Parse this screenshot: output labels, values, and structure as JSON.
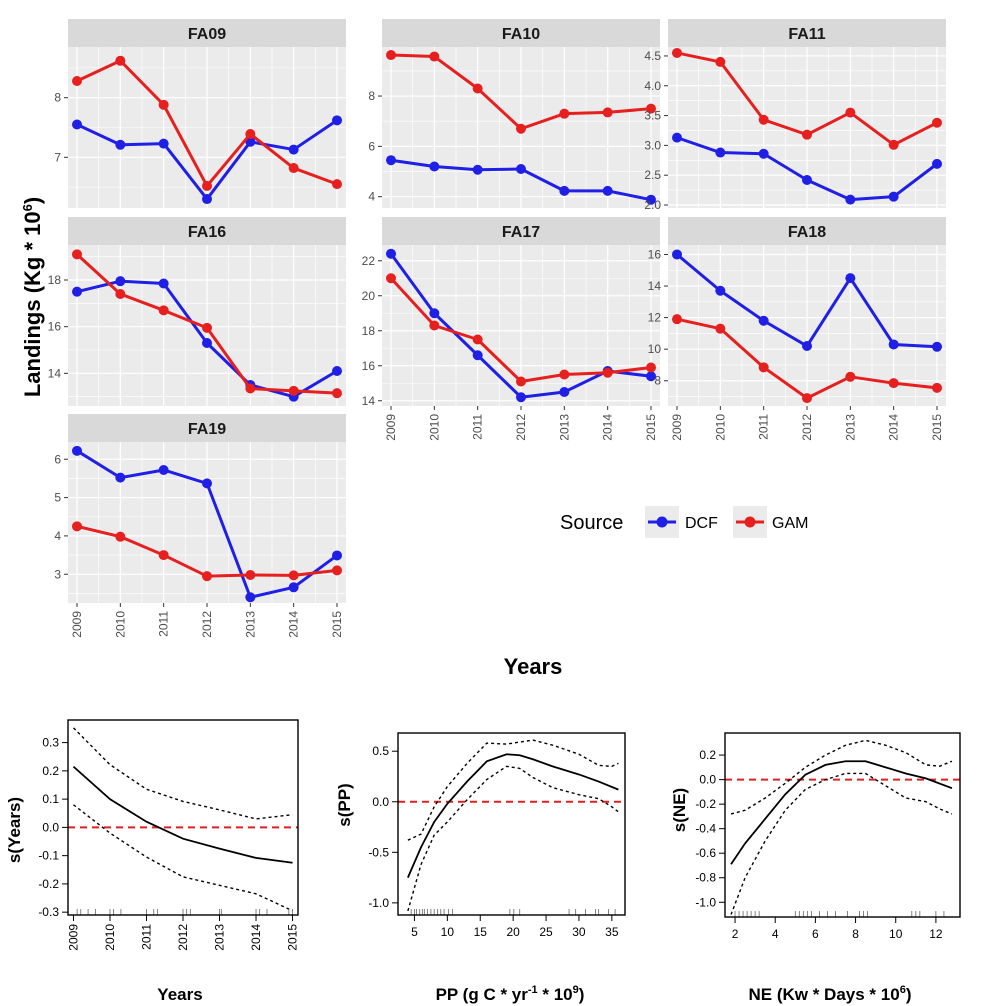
{
  "chart_data": {
    "facet_plot": {
      "type": "line",
      "y_axis_label": "Landings (Kg * 10",
      "y_axis_label_sup": "6",
      "y_axis_label_end": ")",
      "x_axis_label": "Years",
      "legend": {
        "title": "Source",
        "placement": "right",
        "entries": [
          {
            "name": "DCF",
            "color": "#1f1fe6"
          },
          {
            "name": "GAM",
            "color": "#e61f1f"
          }
        ]
      },
      "x": [
        "2009",
        "2010",
        "2011",
        "2012",
        "2013",
        "2014",
        "2015"
      ],
      "panels": [
        {
          "title": "FA09",
          "ylim": [
            6.15,
            8.85
          ],
          "yticks": [
            7,
            8
          ],
          "show_x": false,
          "series": [
            {
              "name": "DCF",
              "values": [
                7.55,
                7.21,
                7.23,
                6.3,
                7.26,
                7.13,
                7.62
              ]
            },
            {
              "name": "GAM",
              "values": [
                8.28,
                8.62,
                7.88,
                6.52,
                7.39,
                6.82,
                6.55
              ]
            }
          ]
        },
        {
          "title": "FA10",
          "ylim": [
            3.55,
            9.95
          ],
          "yticks": [
            4,
            6,
            8
          ],
          "show_x": false,
          "series": [
            {
              "name": "DCF",
              "values": [
                5.45,
                5.2,
                5.07,
                5.1,
                4.23,
                4.23,
                3.88
              ]
            },
            {
              "name": "GAM",
              "values": [
                9.63,
                9.57,
                8.3,
                6.7,
                7.3,
                7.35,
                7.5
              ]
            }
          ]
        },
        {
          "title": "FA11",
          "ylim": [
            1.95,
            4.65
          ],
          "yticks": [
            2.0,
            2.5,
            3.0,
            3.5,
            4.0,
            4.5
          ],
          "show_x": false,
          "series": [
            {
              "name": "DCF",
              "values": [
                3.13,
                2.88,
                2.86,
                2.42,
                2.09,
                2.14,
                2.69
              ]
            },
            {
              "name": "GAM",
              "values": [
                4.55,
                4.4,
                3.43,
                3.18,
                3.55,
                3.01,
                3.38
              ]
            }
          ]
        },
        {
          "title": "FA16",
          "ylim": [
            12.6,
            19.5
          ],
          "yticks": [
            14,
            16,
            18
          ],
          "show_x": false,
          "series": [
            {
              "name": "DCF",
              "values": [
                17.5,
                17.95,
                17.85,
                15.3,
                13.5,
                13.0,
                14.1
              ]
            },
            {
              "name": "GAM",
              "values": [
                19.1,
                17.4,
                16.7,
                15.95,
                13.35,
                13.25,
                13.15
              ]
            }
          ]
        },
        {
          "title": "FA17",
          "ylim": [
            13.7,
            22.9
          ],
          "yticks": [
            14,
            16,
            18,
            20,
            22
          ],
          "show_x": true,
          "series": [
            {
              "name": "DCF",
              "values": [
                22.4,
                19.0,
                16.6,
                14.2,
                14.5,
                15.7,
                15.4
              ]
            },
            {
              "name": "GAM",
              "values": [
                21.0,
                18.3,
                17.5,
                15.1,
                15.5,
                15.6,
                15.9
              ]
            }
          ]
        },
        {
          "title": "FA18",
          "ylim": [
            6.4,
            16.6
          ],
          "yticks": [
            8,
            10,
            12,
            14,
            16
          ],
          "show_x": true,
          "series": [
            {
              "name": "DCF",
              "values": [
                16.0,
                13.7,
                11.8,
                10.2,
                14.5,
                10.3,
                10.15
              ]
            },
            {
              "name": "GAM",
              "values": [
                11.9,
                11.3,
                8.85,
                6.9,
                8.25,
                7.85,
                7.55
              ]
            }
          ]
        },
        {
          "title": "FA19",
          "ylim": [
            2.25,
            6.45
          ],
          "yticks": [
            3,
            4,
            5,
            6
          ],
          "show_x": true,
          "series": [
            {
              "name": "DCF",
              "values": [
                6.22,
                5.52,
                5.72,
                5.37,
                2.4,
                2.66,
                3.49
              ]
            },
            {
              "name": "GAM",
              "values": [
                4.25,
                3.98,
                3.5,
                2.95,
                2.98,
                2.97,
                3.1
              ]
            }
          ]
        }
      ]
    },
    "smooth_plots": [
      {
        "type": "line",
        "xlabel": "Years",
        "ylabel": "s(Years)",
        "xlim": [
          2008.85,
          2015.15
        ],
        "ylim": [
          -0.31,
          0.38
        ],
        "xticks": [
          2009,
          2010,
          2011,
          2012,
          2013,
          2014,
          2015
        ],
        "xtick_rotate": true,
        "yticks": [
          0.3,
          0.2,
          0.1,
          0.0,
          -0.1,
          -0.2,
          -0.3
        ],
        "ytick_labels": [
          "0.3",
          "0.2",
          "0.1",
          "0.0",
          "-0.1",
          "-0.2",
          "-0.3"
        ],
        "zero_line": 0,
        "fit": {
          "x": [
            2009,
            2010,
            2011,
            2012,
            2013,
            2014,
            2015
          ],
          "y": [
            0.215,
            0.1,
            0.02,
            -0.04,
            -0.075,
            -0.108,
            -0.125
          ]
        },
        "upper": {
          "x": [
            2009,
            2010,
            2011,
            2012,
            2013,
            2014,
            2015
          ],
          "y": [
            0.352,
            0.222,
            0.135,
            0.092,
            0.062,
            0.03,
            0.045
          ]
        },
        "lower": {
          "x": [
            2009,
            2010,
            2011,
            2012,
            2013,
            2014,
            2015
          ],
          "y": [
            0.08,
            -0.02,
            -0.105,
            -0.175,
            -0.205,
            -0.235,
            -0.295
          ]
        },
        "rug": [
          2009.1,
          2009.2,
          2009.4,
          2009.6,
          2010.0,
          2010.1,
          2010.3,
          2011.0,
          2011.2,
          2011.3,
          2012.0,
          2012.1,
          2012.2,
          2013.0,
          2013.05,
          2014.0,
          2014.1,
          2014.3,
          2014.9,
          2015.0
        ]
      },
      {
        "type": "line",
        "xlabel": "PP (g C * yr",
        "xlabel_sup1": "-1",
        "xlabel_mid": " * 10",
        "xlabel_sup2": "9",
        "xlabel_end": ")",
        "ylabel": "s(PP)",
        "xlim": [
          2.5,
          37.0
        ],
        "ylim": [
          -1.12,
          0.68
        ],
        "xticks": [
          5,
          10,
          15,
          20,
          25,
          30,
          35
        ],
        "xtick_rotate": false,
        "yticks": [
          0.5,
          0.0,
          -0.5,
          -1.0
        ],
        "ytick_labels": [
          "0.5",
          "0.0",
          "-0.5",
          "-1.0"
        ],
        "zero_line": 0,
        "fit": {
          "x": [
            4,
            6,
            8,
            10,
            13,
            16,
            19,
            21,
            23,
            26,
            30,
            33,
            36
          ],
          "y": [
            -0.75,
            -0.45,
            -0.2,
            -0.02,
            0.2,
            0.4,
            0.47,
            0.46,
            0.42,
            0.35,
            0.27,
            0.2,
            0.12
          ]
        },
        "upper": {
          "x": [
            4,
            6,
            8,
            10,
            13,
            16,
            19,
            21,
            23,
            26,
            30,
            33,
            35,
            36
          ],
          "y": [
            -0.38,
            -0.32,
            -0.05,
            0.15,
            0.38,
            0.58,
            0.57,
            0.59,
            0.61,
            0.56,
            0.47,
            0.36,
            0.35,
            0.38
          ]
        },
        "lower": {
          "x": [
            4,
            6,
            8,
            10,
            13,
            16,
            19,
            21,
            23,
            26,
            30,
            33,
            35,
            36
          ],
          "y": [
            -1.08,
            -0.62,
            -0.33,
            -0.2,
            0.02,
            0.22,
            0.35,
            0.33,
            0.24,
            0.14,
            0.07,
            0.03,
            -0.05,
            -0.1
          ]
        },
        "rug": [
          4.5,
          5.0,
          5.3,
          5.8,
          6.2,
          6.5,
          7.0,
          7.5,
          8.0,
          8.5,
          9.0,
          9.5,
          10.2,
          10.8,
          19.5,
          20.1,
          21.0,
          28.5,
          29.5,
          31.0,
          32.5,
          33.0,
          34.5,
          35.5
        ]
      },
      {
        "type": "line",
        "xlabel": "NE (Kw * Days *  10",
        "xlabel_sup1": "6",
        "xlabel_end": ")",
        "ylabel": "s(NE)",
        "xlim": [
          1.5,
          13.2
        ],
        "ylim": [
          -1.12,
          0.38
        ],
        "xticks": [
          2,
          4,
          6,
          8,
          10,
          12
        ],
        "xtick_rotate": false,
        "yticks": [
          0.2,
          0.0,
          -0.2,
          -0.4,
          -0.6,
          -0.8,
          -1.0
        ],
        "ytick_labels": [
          "0.2",
          "0.0",
          "-0.2",
          "-0.4",
          "-0.6",
          "-0.8",
          "-1.0"
        ],
        "zero_line": 0,
        "fit": {
          "x": [
            1.8,
            2.5,
            3.5,
            4.5,
            5.5,
            6.5,
            7.5,
            8.5,
            9.5,
            10.5,
            11.5,
            12.8
          ],
          "y": [
            -0.69,
            -0.52,
            -0.32,
            -0.12,
            0.04,
            0.12,
            0.15,
            0.15,
            0.1,
            0.05,
            0.01,
            -0.07
          ]
        },
        "upper": {
          "x": [
            1.8,
            2.5,
            3.5,
            4.5,
            5.5,
            6.5,
            7.5,
            8.5,
            9.5,
            10.5,
            11.5,
            12.2,
            12.8
          ],
          "y": [
            -0.28,
            -0.25,
            -0.15,
            -0.03,
            0.1,
            0.2,
            0.28,
            0.32,
            0.28,
            0.22,
            0.12,
            0.11,
            0.15
          ]
        },
        "lower": {
          "x": [
            1.8,
            2.5,
            3.5,
            4.5,
            5.5,
            6.5,
            7.5,
            8.5,
            9.5,
            10.5,
            11.5,
            12.2,
            12.8
          ],
          "y": [
            -1.1,
            -0.8,
            -0.5,
            -0.25,
            -0.08,
            0.0,
            0.05,
            0.05,
            -0.05,
            -0.15,
            -0.18,
            -0.24,
            -0.28
          ]
        },
        "rug": [
          2.0,
          2.2,
          2.4,
          2.6,
          2.8,
          3.0,
          3.2,
          5.0,
          5.2,
          5.4,
          5.6,
          5.8,
          6.2,
          6.6,
          7.0,
          7.6,
          8.2,
          8.4,
          8.6,
          10.8,
          11.0,
          11.2,
          12.0,
          12.4
        ]
      }
    ]
  }
}
